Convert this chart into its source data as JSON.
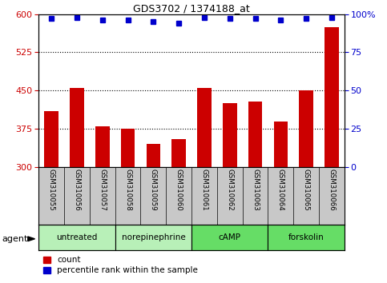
{
  "title": "GDS3702 / 1374188_at",
  "samples": [
    "GSM310055",
    "GSM310056",
    "GSM310057",
    "GSM310058",
    "GSM310059",
    "GSM310060",
    "GSM310061",
    "GSM310062",
    "GSM310063",
    "GSM310064",
    "GSM310065",
    "GSM310066"
  ],
  "counts": [
    410,
    455,
    380,
    375,
    345,
    355,
    455,
    425,
    428,
    390,
    450,
    575
  ],
  "percentile_ranks": [
    97,
    98,
    96,
    96,
    95,
    94,
    98,
    97,
    97,
    96,
    97,
    98
  ],
  "ylim_left": [
    300,
    600
  ],
  "ylim_right": [
    0,
    100
  ],
  "yticks_left": [
    300,
    375,
    450,
    525,
    600
  ],
  "yticks_right": [
    0,
    25,
    50,
    75,
    100
  ],
  "bar_color": "#cc0000",
  "dot_color": "#0000cc",
  "background_plot": "#ffffff",
  "background_label": "#c8c8c8",
  "grid_color": "#000000",
  "groups": [
    {
      "label": "untreated",
      "start": 0,
      "end": 2,
      "color": "#b8f0b8"
    },
    {
      "label": "norepinephrine",
      "start": 3,
      "end": 5,
      "color": "#b8f0b8"
    },
    {
      "label": "cAMP",
      "start": 6,
      "end": 8,
      "color": "#66dd66"
    },
    {
      "label": "forskolin",
      "start": 9,
      "end": 11,
      "color": "#66dd66"
    }
  ],
  "legend_count_label": "count",
  "legend_pct_label": "percentile rank within the sample",
  "agent_label": "agent",
  "fig_width": 4.83,
  "fig_height": 3.54,
  "dpi": 100
}
